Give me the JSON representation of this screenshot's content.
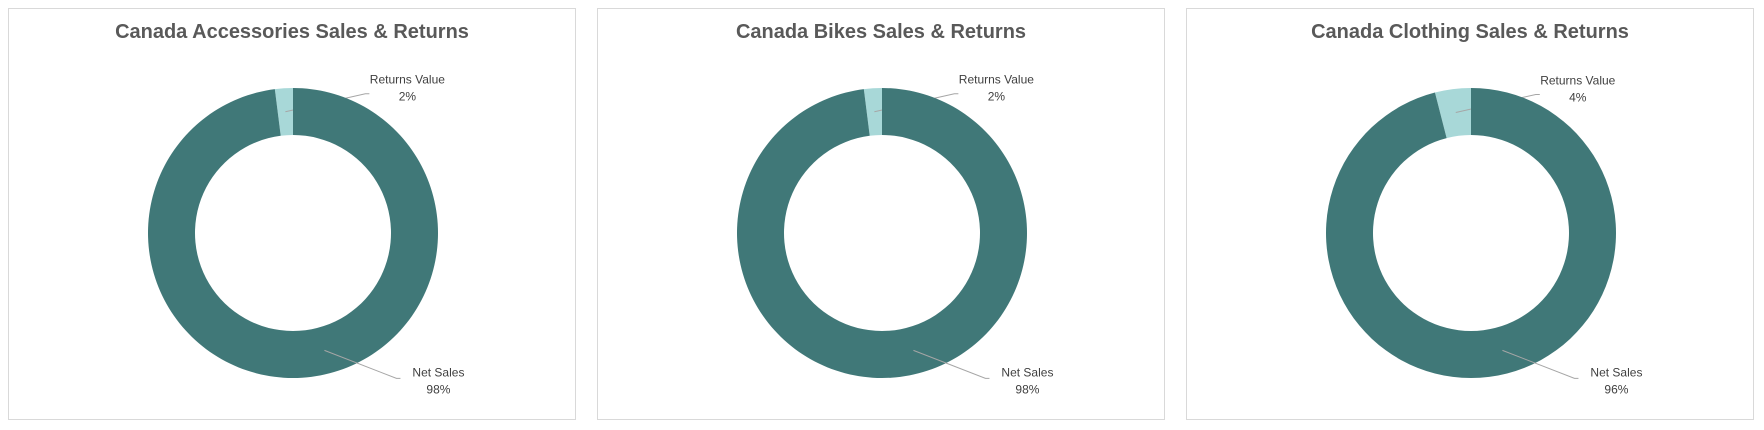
{
  "chart_data": [
    {
      "type": "pie",
      "style": "donut",
      "title": "Canada Accessories Sales & Returns",
      "slices": [
        {
          "name": "Returns Value",
          "value": 2,
          "label": "2%",
          "color": "#a8d8d8"
        },
        {
          "name": "Net Sales",
          "value": 98,
          "label": "98%",
          "color": "#407878"
        }
      ]
    },
    {
      "type": "pie",
      "style": "donut",
      "title": "Canada Bikes Sales & Returns",
      "slices": [
        {
          "name": "Returns Value",
          "value": 2,
          "label": "2%",
          "color": "#a8d8d8"
        },
        {
          "name": "Net Sales",
          "value": 98,
          "label": "98%",
          "color": "#407878"
        }
      ]
    },
    {
      "type": "pie",
      "style": "donut",
      "title": "Canada Clothing Sales & Returns",
      "slices": [
        {
          "name": "Returns Value",
          "value": 4,
          "label": "4%",
          "color": "#a8d8d8"
        },
        {
          "name": "Net Sales",
          "value": 96,
          "label": "96%",
          "color": "#407878"
        }
      ]
    }
  ]
}
